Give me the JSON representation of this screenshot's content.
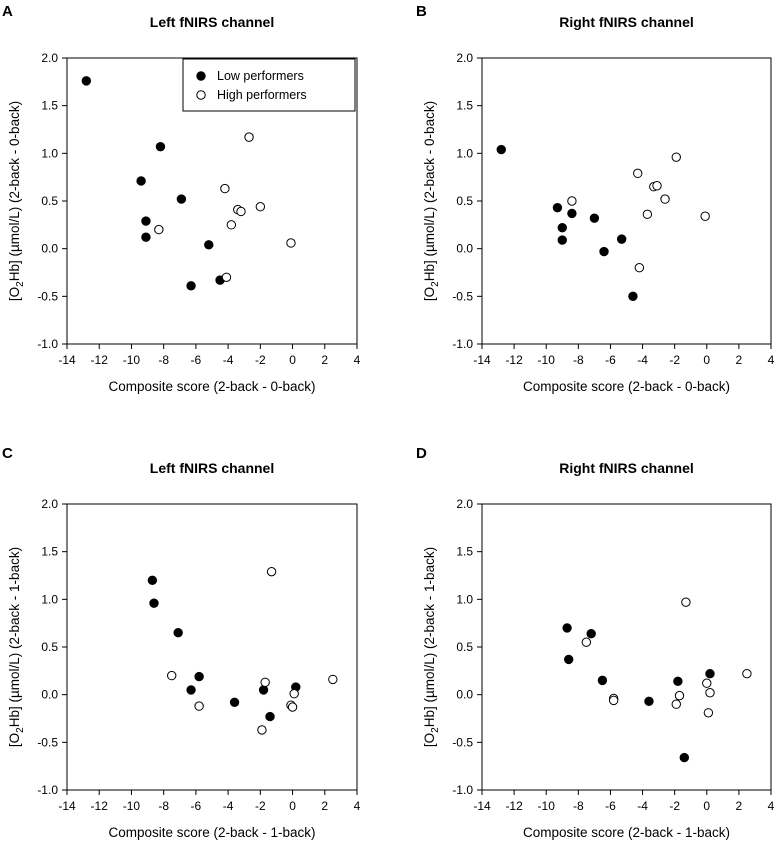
{
  "figure": {
    "legend": {
      "low_label": "Low performers",
      "high_label": "High performers"
    }
  },
  "chart_data": [
    {
      "panel_letter": "A",
      "type": "scatter",
      "title": "Left fNIRS channel",
      "xlabel": "Composite score (2-back - 0-back)",
      "ylabel": "[O2Hb] (µmol/L) (2-back - 0-back)",
      "ylabel_parts": {
        "pre": "[O",
        "sub": "2",
        "post": "Hb] (µmol/L) (2-back - 0-back)"
      },
      "xlim": [
        -14,
        4
      ],
      "ylim": [
        -1.0,
        2.0
      ],
      "xticks": [
        "-14",
        "-12",
        "-10",
        "-8",
        "-6",
        "-4",
        "-2",
        "0",
        "2",
        "4"
      ],
      "yticks": [
        "-1.0",
        "-0.5",
        "0.0",
        "0.5",
        "1.0",
        "1.5",
        "2.0"
      ],
      "legend": true,
      "series": [
        {
          "name": "Low performers",
          "filled": true,
          "points": [
            [
              -12.8,
              1.76
            ],
            [
              -8.2,
              1.07
            ],
            [
              -9.4,
              0.71
            ],
            [
              -6.9,
              0.52
            ],
            [
              -9.1,
              0.29
            ],
            [
              -9.1,
              0.12
            ],
            [
              -5.2,
              0.04
            ],
            [
              -6.3,
              -0.39
            ],
            [
              -4.5,
              -0.33
            ]
          ]
        },
        {
          "name": "High performers",
          "filled": true,
          "points": [
            [
              -2.7,
              1.17
            ],
            [
              -4.2,
              0.63
            ],
            [
              -3.4,
              0.41
            ],
            [
              -3.2,
              0.39
            ],
            [
              -2.0,
              0.44
            ],
            [
              -3.8,
              0.25
            ],
            [
              -8.3,
              0.2
            ],
            [
              -0.1,
              0.06
            ],
            [
              -4.1,
              -0.3
            ]
          ]
        }
      ]
    },
    {
      "panel_letter": "B",
      "type": "scatter",
      "title": "Right fNIRS channel",
      "xlabel": "Composite score (2-back - 0-back)",
      "ylabel": "[O2Hb] (µmol/L) (2-back - 0-back)",
      "ylabel_parts": {
        "pre": "[O",
        "sub": "2",
        "post": "Hb] (µmol/L) (2-back - 0-back)"
      },
      "xlim": [
        -14,
        4
      ],
      "ylim": [
        -1.0,
        2.0
      ],
      "xticks": [
        "-14",
        "-12",
        "-10",
        "-8",
        "-6",
        "-4",
        "-2",
        "0",
        "2",
        "4"
      ],
      "yticks": [
        "-1.0",
        "-0.5",
        "0.0",
        "0.5",
        "1.0",
        "1.5",
        "2.0"
      ],
      "legend": false,
      "series": [
        {
          "name": "Low performers",
          "filled": true,
          "points": [
            [
              -12.8,
              1.04
            ],
            [
              -9.3,
              0.43
            ],
            [
              -8.4,
              0.37
            ],
            [
              -9.0,
              0.22
            ],
            [
              -9.0,
              0.09
            ],
            [
              -7.0,
              0.32
            ],
            [
              -5.3,
              0.1
            ],
            [
              -6.4,
              -0.03
            ],
            [
              -4.6,
              -0.5
            ]
          ]
        },
        {
          "name": "High performers",
          "filled": true,
          "points": [
            [
              -8.4,
              0.5
            ],
            [
              -4.3,
              0.79
            ],
            [
              -3.3,
              0.65
            ],
            [
              -3.1,
              0.66
            ],
            [
              -2.6,
              0.52
            ],
            [
              -3.7,
              0.36
            ],
            [
              -1.9,
              0.96
            ],
            [
              -0.1,
              0.34
            ],
            [
              -4.2,
              -0.2
            ]
          ]
        }
      ]
    },
    {
      "panel_letter": "C",
      "type": "scatter",
      "title": "Left fNIRS channel",
      "xlabel": "Composite score (2-back - 1-back)",
      "ylabel": "[O2Hb] (µmol/L) (2-back - 1-back)",
      "ylabel_parts": {
        "pre": "[O",
        "sub": "2",
        "post": "Hb] (µmol/L) (2-back - 1-back)"
      },
      "xlim": [
        -14,
        4
      ],
      "ylim": [
        -1.0,
        2.0
      ],
      "xticks": [
        "-14",
        "-12",
        "-10",
        "-8",
        "-6",
        "-4",
        "-2",
        "0",
        "2",
        "4"
      ],
      "yticks": [
        "-1.0",
        "-0.5",
        "0.0",
        "0.5",
        "1.0",
        "1.5",
        "2.0"
      ],
      "legend": false,
      "series": [
        {
          "name": "Low performers",
          "filled": true,
          "points": [
            [
              -8.7,
              1.2
            ],
            [
              -8.6,
              0.96
            ],
            [
              -7.1,
              0.65
            ],
            [
              -5.8,
              0.19
            ],
            [
              -6.3,
              0.05
            ],
            [
              -3.6,
              -0.08
            ],
            [
              -1.8,
              0.05
            ],
            [
              -1.4,
              -0.23
            ],
            [
              0.2,
              0.08
            ]
          ]
        },
        {
          "name": "High performers",
          "filled": true,
          "points": [
            [
              -1.3,
              1.29
            ],
            [
              -7.5,
              0.2
            ],
            [
              -5.8,
              -0.12
            ],
            [
              -1.7,
              0.13
            ],
            [
              -1.9,
              -0.37
            ],
            [
              -0.1,
              -0.11
            ],
            [
              0.0,
              -0.13
            ],
            [
              0.1,
              0.01
            ],
            [
              2.5,
              0.16
            ]
          ]
        }
      ]
    },
    {
      "panel_letter": "D",
      "type": "scatter",
      "title": "Right fNIRS channel",
      "xlabel": "Composite score (2-back - 1-back)",
      "ylabel": "[O2Hb] (µmol/L) (2-back - 1-back)",
      "ylabel_parts": {
        "pre": "[O",
        "sub": "2",
        "post": "Hb] (µmol/L) (2-back - 1-back)"
      },
      "xlim": [
        -14,
        4
      ],
      "ylim": [
        -1.0,
        2.0
      ],
      "xticks": [
        "-14",
        "-12",
        "-10",
        "-8",
        "-6",
        "-4",
        "-2",
        "0",
        "2",
        "4"
      ],
      "yticks": [
        "-1.0",
        "-0.5",
        "0.0",
        "0.5",
        "1.0",
        "1.5",
        "2.0"
      ],
      "legend": false,
      "series": [
        {
          "name": "Low performers",
          "filled": true,
          "points": [
            [
              -8.7,
              0.7
            ],
            [
              -8.6,
              0.37
            ],
            [
              -7.2,
              0.64
            ],
            [
              -6.5,
              0.15
            ],
            [
              -3.6,
              -0.07
            ],
            [
              -1.8,
              0.14
            ],
            [
              0.2,
              0.22
            ],
            [
              -1.4,
              -0.66
            ]
          ]
        },
        {
          "name": "High performers",
          "filled": true,
          "points": [
            [
              -1.3,
              0.97
            ],
            [
              -7.5,
              0.55
            ],
            [
              -5.8,
              -0.04
            ],
            [
              -5.8,
              -0.06
            ],
            [
              -1.7,
              -0.01
            ],
            [
              -1.9,
              -0.1
            ],
            [
              0.0,
              0.12
            ],
            [
              0.2,
              0.02
            ],
            [
              0.1,
              -0.19
            ],
            [
              2.5,
              0.22
            ]
          ]
        }
      ]
    }
  ]
}
